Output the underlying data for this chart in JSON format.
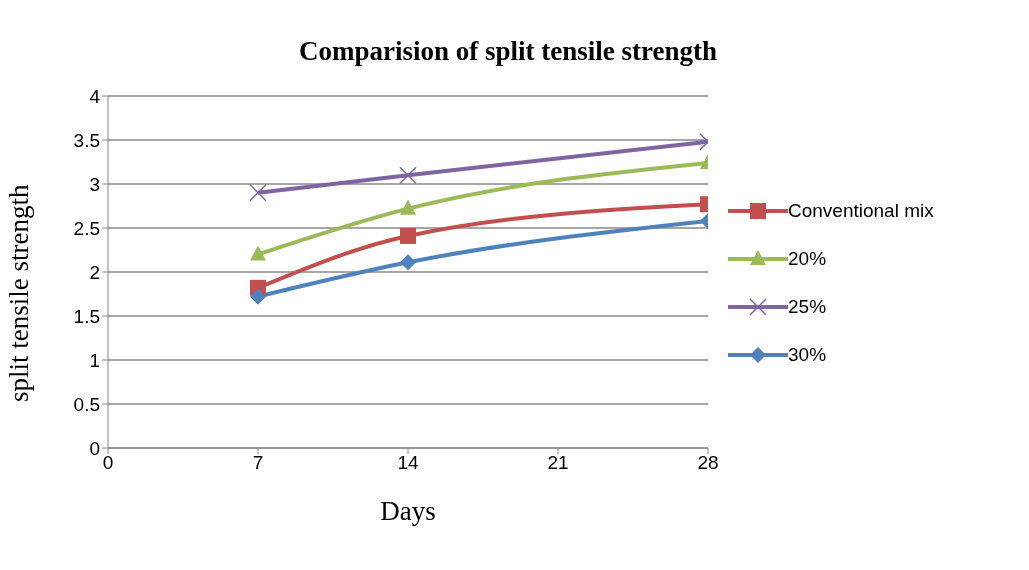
{
  "chart_data": {
    "type": "line",
    "title": "Comparision of split tensile  strength",
    "xlabel": "Days",
    "ylabel": "split tensile strength",
    "x": [
      7,
      14,
      28
    ],
    "xlim": [
      0,
      28
    ],
    "xticks": [
      0,
      7,
      14,
      21,
      28
    ],
    "ylim": [
      0,
      4
    ],
    "yticks": [
      0,
      0.5,
      1,
      1.5,
      2,
      2.5,
      3,
      3.5,
      4
    ],
    "grid": "y",
    "legend": "right",
    "series": [
      {
        "name": "Conventional mix",
        "color": "#c0504d",
        "marker": "square",
        "values": [
          1.82,
          2.41,
          2.77
        ]
      },
      {
        "name": "20%",
        "color": "#9bbb59",
        "marker": "triangle",
        "values": [
          2.2,
          2.72,
          3.24
        ]
      },
      {
        "name": "25%",
        "color": "#8064a2",
        "marker": "cross",
        "values": [
          2.9,
          3.1,
          3.48
        ]
      },
      {
        "name": "30%",
        "color": "#4f81bd",
        "marker": "diamond",
        "values": [
          1.72,
          2.11,
          2.58
        ]
      }
    ]
  }
}
